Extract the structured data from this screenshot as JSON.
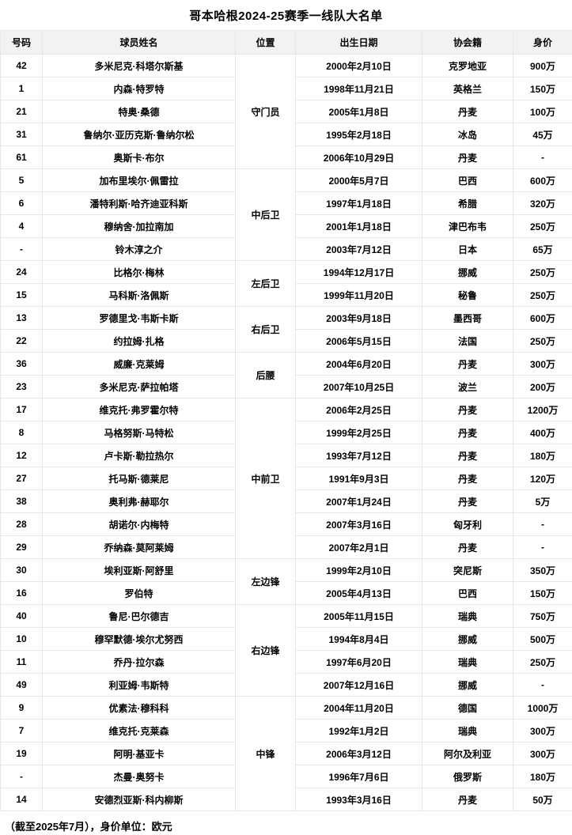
{
  "page": {
    "title": "哥本哈根2024-25赛季一线队大名单",
    "footer_note": "（截至2025年7月），身价单位：欧元"
  },
  "table": {
    "headers": {
      "number": "号码",
      "name": "球员姓名",
      "position": "位置",
      "birth": "出生日期",
      "nation": "协会籍",
      "value": "身价"
    },
    "groups": [
      {
        "position": "守门员",
        "players": [
          {
            "number": "42",
            "name": "多米尼克·科塔尔斯基",
            "birth": "2000年2月10日",
            "nation": "克罗地亚",
            "value": "900万"
          },
          {
            "number": "1",
            "name": "内森·特罗特",
            "birth": "1998年11月21日",
            "nation": "英格兰",
            "value": "150万"
          },
          {
            "number": "21",
            "name": "特奥·桑德",
            "birth": "2005年1月8日",
            "nation": "丹麦",
            "value": "100万"
          },
          {
            "number": "31",
            "name": "鲁纳尔·亚历克斯·鲁纳尔松",
            "birth": "1995年2月18日",
            "nation": "冰岛",
            "value": "45万"
          },
          {
            "number": "61",
            "name": "奥斯卡·布尔",
            "birth": "2006年10月29日",
            "nation": "丹麦",
            "value": "-"
          }
        ]
      },
      {
        "position": "中后卫",
        "players": [
          {
            "number": "5",
            "name": "加布里埃尔·佩雷拉",
            "birth": "2000年5月7日",
            "nation": "巴西",
            "value": "600万"
          },
          {
            "number": "6",
            "name": "潘特利斯·哈齐迪亚科斯",
            "birth": "1997年1月18日",
            "nation": "希腊",
            "value": "320万"
          },
          {
            "number": "4",
            "name": "穆纳舍·加拉南加",
            "birth": "2001年1月18日",
            "nation": "津巴布韦",
            "value": "250万"
          },
          {
            "number": "-",
            "name": "铃木淳之介",
            "birth": "2003年7月12日",
            "nation": "日本",
            "value": "65万"
          }
        ]
      },
      {
        "position": "左后卫",
        "players": [
          {
            "number": "24",
            "name": "比格尔·梅林",
            "birth": "1994年12月17日",
            "nation": "挪威",
            "value": "250万"
          },
          {
            "number": "15",
            "name": "马科斯·洛佩斯",
            "birth": "1999年11月20日",
            "nation": "秘鲁",
            "value": "250万"
          }
        ]
      },
      {
        "position": "右后卫",
        "players": [
          {
            "number": "13",
            "name": "罗德里戈·韦斯卡斯",
            "birth": "2003年9月18日",
            "nation": "墨西哥",
            "value": "600万"
          },
          {
            "number": "22",
            "name": "约拉姆·扎格",
            "birth": "2006年5月15日",
            "nation": "法国",
            "value": "250万"
          }
        ]
      },
      {
        "position": "后腰",
        "players": [
          {
            "number": "36",
            "name": "威廉·克莱姆",
            "birth": "2004年6月20日",
            "nation": "丹麦",
            "value": "300万"
          },
          {
            "number": "23",
            "name": "多米尼克·萨拉帕塔",
            "birth": "2007年10月25日",
            "nation": "波兰",
            "value": "200万"
          }
        ]
      },
      {
        "position": "中前卫",
        "players": [
          {
            "number": "17",
            "name": "维克托·弗罗霍尔特",
            "birth": "2006年2月25日",
            "nation": "丹麦",
            "value": "1200万"
          },
          {
            "number": "8",
            "name": "马格努斯·马特松",
            "birth": "1999年2月25日",
            "nation": "丹麦",
            "value": "400万"
          },
          {
            "number": "12",
            "name": "卢卡斯·勒拉热尔",
            "birth": "1993年7月12日",
            "nation": "丹麦",
            "value": "180万"
          },
          {
            "number": "27",
            "name": "托马斯·德莱尼",
            "birth": "1991年9月3日",
            "nation": "丹麦",
            "value": "120万"
          },
          {
            "number": "38",
            "name": "奥利弗·赫耶尔",
            "birth": "2007年1月24日",
            "nation": "丹麦",
            "value": "5万"
          },
          {
            "number": "28",
            "name": "胡诺尔·内梅特",
            "birth": "2007年3月16日",
            "nation": "匈牙利",
            "value": "-"
          },
          {
            "number": "29",
            "name": "乔纳森·莫阿莱姆",
            "birth": "2007年2月1日",
            "nation": "丹麦",
            "value": "-"
          }
        ]
      },
      {
        "position": "左边锋",
        "players": [
          {
            "number": "30",
            "name": "埃利亚斯·阿舒里",
            "birth": "1999年2月10日",
            "nation": "突尼斯",
            "value": "350万"
          },
          {
            "number": "16",
            "name": "罗伯特",
            "birth": "2005年4月13日",
            "nation": "巴西",
            "value": "150万"
          }
        ]
      },
      {
        "position": "右边锋",
        "players": [
          {
            "number": "40",
            "name": "鲁尼·巴尔德吉",
            "birth": "2005年11月15日",
            "nation": "瑞典",
            "value": "750万"
          },
          {
            "number": "10",
            "name": "穆罕默德·埃尔尤努西",
            "birth": "1994年8月4日",
            "nation": "挪威",
            "value": "500万"
          },
          {
            "number": "11",
            "name": "乔丹·拉尔森",
            "birth": "1997年6月20日",
            "nation": "瑞典",
            "value": "250万"
          },
          {
            "number": "49",
            "name": "利亚姆·韦斯特",
            "birth": "2007年12月16日",
            "nation": "挪威",
            "value": "-"
          }
        ]
      },
      {
        "position": "中锋",
        "players": [
          {
            "number": "9",
            "name": "优素法·穆科科",
            "birth": "2004年11月20日",
            "nation": "德国",
            "value": "1000万"
          },
          {
            "number": "7",
            "name": "维克托·克莱森",
            "birth": "1992年1月2日",
            "nation": "瑞典",
            "value": "300万"
          },
          {
            "number": "19",
            "name": "阿明·基亚卡",
            "birth": "2006年3月12日",
            "nation": "阿尔及利亚",
            "value": "300万"
          },
          {
            "number": "-",
            "name": "杰曼·奥努卡",
            "birth": "1996年7月6日",
            "nation": "俄罗斯",
            "value": "180万"
          },
          {
            "number": "14",
            "name": "安德烈亚斯·科内柳斯",
            "birth": "1993年3月16日",
            "nation": "丹麦",
            "value": "50万"
          }
        ]
      }
    ]
  }
}
